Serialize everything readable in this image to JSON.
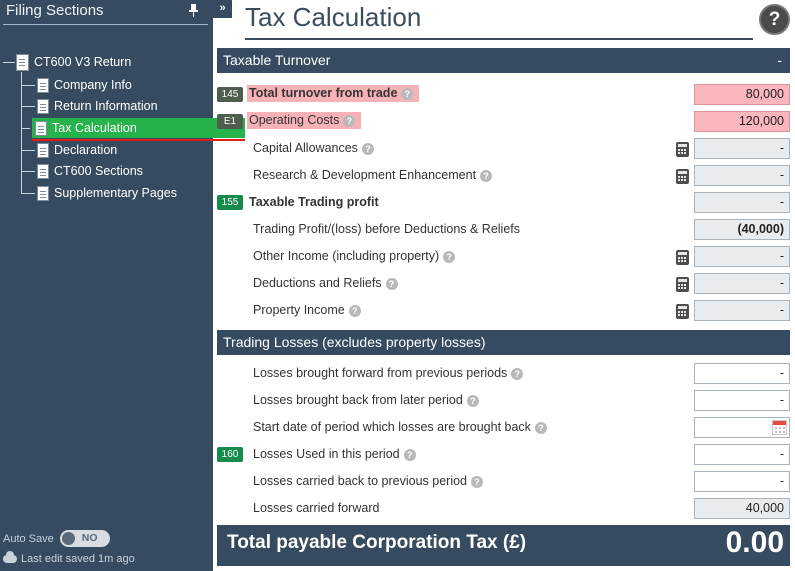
{
  "sidebar": {
    "title": "Filing Sections",
    "pin_icon": "pin-icon",
    "tree": {
      "root": "CT600 V3 Return",
      "items": [
        {
          "label": "Company Info"
        },
        {
          "label": "Return Information"
        },
        {
          "label": "Tax Calculation",
          "active": true
        },
        {
          "label": "Declaration"
        },
        {
          "label": "CT600 Sections"
        },
        {
          "label": "Supplementary Pages"
        }
      ]
    },
    "autosave": {
      "label": "Auto Save",
      "toggle": "NO"
    },
    "last_saved": "Last edit saved 1m ago"
  },
  "header": {
    "collapse": "»",
    "title": "Tax Calculation",
    "help": "?"
  },
  "sections": {
    "turnover": {
      "title": "Taxable Turnover",
      "toggle": "-",
      "rows": [
        {
          "code": "145",
          "label": "Total turnover from trade",
          "value": "80,000"
        },
        {
          "code": "E1",
          "label": "Operating Costs",
          "value": "120,000"
        },
        {
          "label": "Capital Allowances",
          "value": "-"
        },
        {
          "label": "Research & Development Enhancement",
          "value": "-"
        },
        {
          "code": "155",
          "label": "Taxable Trading profit",
          "value": "-"
        },
        {
          "label": "Trading Profit/(loss) before Deductions & Reliefs",
          "value": "(40,000)"
        },
        {
          "label": "Other Income (including property)",
          "value": "-"
        },
        {
          "label": "Deductions and Reliefs",
          "value": "-"
        },
        {
          "label": "Property Income",
          "value": "-"
        }
      ]
    },
    "losses": {
      "title": "Trading Losses (excludes property losses)",
      "rows": [
        {
          "label": "Losses brought forward from previous periods",
          "value": "-"
        },
        {
          "label": "Losses brought back from later period",
          "value": "-"
        },
        {
          "label": "Start date of period which losses are brought back",
          "value": ""
        },
        {
          "code": "160",
          "label": "Losses Used in this period",
          "value": "-"
        },
        {
          "label": "Losses carried back to previous period",
          "value": "-"
        },
        {
          "label": "Losses carried forward",
          "value": "40,000"
        }
      ]
    }
  },
  "total": {
    "label": "Total payable Corporation Tax (£)",
    "value": "0.00"
  },
  "colors": {
    "navy": "#364b60",
    "highlight_pink": "#f9b6bc",
    "active_green": "#27b34c",
    "code_green": "#178a4d"
  }
}
